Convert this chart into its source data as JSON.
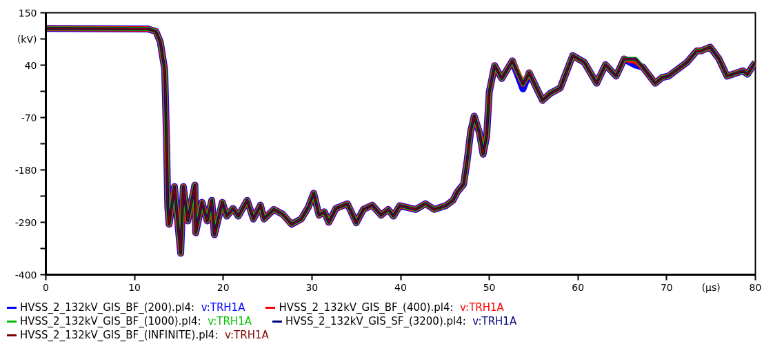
{
  "chart_data": {
    "type": "line",
    "xlabel": "(μs)",
    "ylabel": "(kV)",
    "x": [
      0,
      11.5,
      12.4,
      12.9,
      13.4,
      13.6,
      13.75,
      13.9,
      14.5,
      15.2,
      15.5,
      16.0,
      16.8,
      16.9,
      17.6,
      18.2,
      18.7,
      19.0,
      19.9,
      20.4,
      21.1,
      21.7,
      22.7,
      23.4,
      24.2,
      24.6,
      25.7,
      26.7,
      27.7,
      28.8,
      29.6,
      30.2,
      30.8,
      31.4,
      31.9,
      32.7,
      34.0,
      35.0,
      35.8,
      36.8,
      37.8,
      38.6,
      39.2,
      39.9,
      41.7,
      42.8,
      43.8,
      45.1,
      45.9,
      46.4,
      47.1,
      47.5,
      47.9,
      48.3,
      48.9,
      49.3,
      49.7,
      50.0,
      50.6,
      51.4,
      52.6,
      53.8,
      54.5,
      56.0,
      56.9,
      58.0,
      59.4,
      60.7,
      62.1,
      63.1,
      64.3,
      65.2,
      66.5,
      67.3,
      68.7,
      69.5,
      70.2,
      72.3,
      73.4,
      73.9,
      74.9,
      75.9,
      76.8,
      78.6,
      79.1,
      80
    ],
    "series": [
      {
        "name": "HVSS_2_132kV_GIS_BF_(200).pl4: v:TRH1A",
        "color": "#0000ff",
        "values": [
          117,
          116,
          111,
          89,
          31,
          -113,
          -258,
          -294,
          -215,
          -355,
          -215,
          -287,
          -212,
          -312,
          -248,
          -287,
          -244,
          -316,
          -248,
          -277,
          -261,
          -277,
          -244,
          -283,
          -254,
          -283,
          -263,
          -273,
          -294,
          -283,
          -258,
          -229,
          -275,
          -268,
          -290,
          -261,
          -251,
          -291,
          -263,
          -254,
          -275,
          -263,
          -277,
          -255,
          -263,
          -251,
          -263,
          -255,
          -244,
          -226,
          -210,
          -161,
          -99,
          -67,
          -103,
          -147,
          -109,
          -16,
          39,
          12,
          49,
          -10,
          24,
          -34,
          -19,
          -8,
          60,
          46,
          2,
          41,
          17,
          53,
          40,
          36,
          2,
          14,
          17,
          46,
          70,
          70,
          78,
          53,
          17,
          28,
          21,
          46
        ]
      },
      {
        "name": "HVSS_2_132kV_GIS_BF_(400).pl4: v:TRH1A",
        "color": "#ff0000",
        "values": [
          117,
          116,
          111,
          89,
          31,
          -113,
          -258,
          -294,
          -215,
          -355,
          -215,
          -287,
          -212,
          -312,
          -248,
          -287,
          -244,
          -316,
          -248,
          -277,
          -261,
          -277,
          -244,
          -283,
          -254,
          -283,
          -263,
          -273,
          -294,
          -283,
          -258,
          -229,
          -275,
          -268,
          -290,
          -261,
          -251,
          -291,
          -263,
          -254,
          -275,
          -263,
          -277,
          -255,
          -263,
          -251,
          -263,
          -255,
          -244,
          -226,
          -210,
          -161,
          -99,
          -67,
          -103,
          -147,
          -109,
          -16,
          39,
          12,
          49,
          0,
          24,
          -34,
          -19,
          -8,
          60,
          46,
          2,
          41,
          17,
          53,
          48,
          36,
          2,
          14,
          17,
          46,
          70,
          70,
          78,
          53,
          17,
          28,
          21,
          46
        ]
      },
      {
        "name": "HVSS_2_132kV_GIS_BF_(1000).pl4: v:TRH1A",
        "color": "#00c000",
        "values": [
          117,
          116,
          111,
          89,
          31,
          -113,
          -258,
          -294,
          -215,
          -355,
          -215,
          -287,
          -212,
          -312,
          -248,
          -287,
          -244,
          -316,
          -248,
          -277,
          -261,
          -277,
          -244,
          -283,
          -254,
          -283,
          -263,
          -273,
          -294,
          -283,
          -258,
          -229,
          -275,
          -268,
          -290,
          -261,
          -251,
          -291,
          -263,
          -254,
          -275,
          -263,
          -277,
          -255,
          -263,
          -251,
          -263,
          -255,
          -244,
          -226,
          -210,
          -161,
          -99,
          -67,
          -103,
          -147,
          -109,
          -16,
          39,
          12,
          49,
          0,
          24,
          -34,
          -19,
          -8,
          60,
          46,
          2,
          41,
          17,
          53,
          53,
          36,
          2,
          14,
          17,
          46,
          70,
          70,
          78,
          53,
          17,
          28,
          21,
          46
        ]
      },
      {
        "name": "HVSS_2_132kV_GIS_SF_(3200).pl4: v:TRH1A",
        "color": "#000080",
        "values": [
          117,
          116,
          111,
          89,
          31,
          -113,
          -258,
          -294,
          -215,
          -355,
          -215,
          -287,
          -212,
          -312,
          -248,
          -287,
          -244,
          -316,
          -248,
          -277,
          -261,
          -277,
          -244,
          -283,
          -254,
          -283,
          -263,
          -273,
          -294,
          -283,
          -258,
          -229,
          -275,
          -268,
          -290,
          -261,
          -251,
          -291,
          -263,
          -254,
          -275,
          -263,
          -277,
          -255,
          -263,
          -251,
          -263,
          -255,
          -244,
          -226,
          -210,
          -161,
          -99,
          -67,
          -103,
          -147,
          -109,
          -16,
          39,
          12,
          49,
          0,
          24,
          -34,
          -19,
          -8,
          60,
          46,
          2,
          41,
          17,
          53,
          53,
          36,
          2,
          14,
          17,
          46,
          70,
          70,
          78,
          53,
          17,
          28,
          21,
          46
        ]
      },
      {
        "name": "HVSS_2_132kV_GIS_BF_(INFINITE).pl4: v:TRH1A",
        "color": "#800000",
        "values": [
          117,
          116,
          111,
          89,
          31,
          -113,
          -258,
          -294,
          -215,
          -355,
          -215,
          -287,
          -212,
          -312,
          -248,
          -287,
          -244,
          -316,
          -248,
          -277,
          -261,
          -277,
          -244,
          -283,
          -254,
          -283,
          -263,
          -273,
          -294,
          -283,
          -258,
          -229,
          -275,
          -268,
          -290,
          -261,
          -251,
          -291,
          -263,
          -254,
          -275,
          -263,
          -277,
          -255,
          -263,
          -251,
          -263,
          -255,
          -244,
          -226,
          -210,
          -161,
          -99,
          -67,
          -103,
          -147,
          -109,
          -16,
          39,
          12,
          49,
          0,
          24,
          -34,
          -19,
          -8,
          60,
          46,
          2,
          41,
          17,
          53,
          53,
          36,
          2,
          14,
          17,
          46,
          70,
          70,
          78,
          53,
          17,
          28,
          21,
          46
        ]
      }
    ],
    "xlim": [
      0,
      80
    ],
    "xticks": [
      0,
      10,
      20,
      30,
      40,
      50,
      60,
      70,
      80
    ],
    "ylim": [
      -400,
      150
    ],
    "yticks": [
      150,
      {
        "value": 95,
        "label": null
      },
      40,
      {
        "value": -15,
        "label": null
      },
      -70,
      {
        "value": -125,
        "label": null
      },
      -180,
      {
        "value": -235,
        "label": null
      },
      -290,
      {
        "value": -345,
        "label": null
      },
      -400
    ],
    "grid": false,
    "legend": "bottom",
    "marker": "none",
    "line_style": "solid"
  }
}
